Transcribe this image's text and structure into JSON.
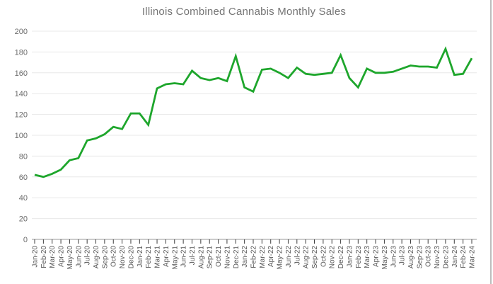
{
  "chart_data": {
    "type": "line",
    "title": "Illinois Combined Cannabis Monthly Sales",
    "categories": [
      "Jan-20",
      "Feb-20",
      "Mar-20",
      "Apr-20",
      "May-20",
      "Jun-20",
      "Jul-20",
      "Aug-20",
      "Sep-20",
      "Oct-20",
      "Nov-20",
      "Dec-20",
      "Jan-21",
      "Feb-21",
      "Mar-21",
      "Apr-21",
      "May-21",
      "Jun-21",
      "Jul-21",
      "Aug-21",
      "Sep-21",
      "Oct-21",
      "Nov-21",
      "Dec-21",
      "Jan-22",
      "Feb-22",
      "Mar-22",
      "Apr-22",
      "May-22",
      "Jun-22",
      "Jul-22",
      "Aug-22",
      "Sep-22",
      "Oct-22",
      "Nov-22",
      "Dec-22",
      "Jan-23",
      "Feb-23",
      "Mar-23",
      "Apr-23",
      "May-23",
      "Jun-23",
      "Jul-23",
      "Aug-23",
      "Sep-23",
      "Oct-23",
      "Nov-23",
      "Dec-23",
      "Jan-24",
      "Feb-24",
      "Mar-24"
    ],
    "values": [
      62,
      60,
      63,
      67,
      76,
      78,
      95,
      97,
      101,
      108,
      106,
      121,
      121,
      110,
      145,
      149,
      150,
      149,
      162,
      155,
      153,
      155,
      152,
      176,
      146,
      142,
      163,
      164,
      160,
      155,
      165,
      159,
      158,
      159,
      160,
      177,
      155,
      146,
      164,
      160,
      160,
      161,
      164,
      167,
      166,
      166,
      165,
      183,
      158,
      159,
      174
    ],
    "xlabel": "",
    "ylabel": "",
    "ylim": [
      0,
      200
    ],
    "yticks": [
      0,
      20,
      40,
      60,
      80,
      100,
      120,
      140,
      160,
      180,
      200
    ],
    "grid": true,
    "legend": "none",
    "colors": {
      "line": "#1ea62c",
      "gridline": "#e8e8e8",
      "baseline": "#9a9a9a",
      "tick": "#3c3c3c",
      "x_label": "#565656",
      "y_label": "#6b6b6b",
      "title": "#757575"
    }
  }
}
